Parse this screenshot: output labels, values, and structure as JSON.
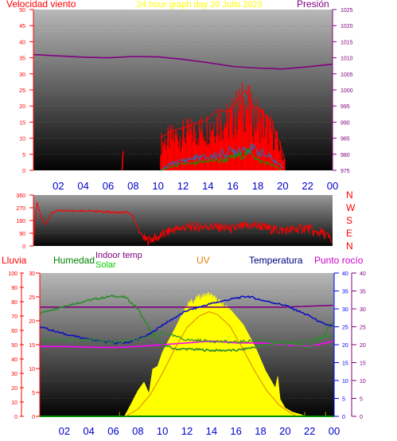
{
  "title": "24 hour graph day   20 Julio 2023",
  "colors": {
    "wind": "#ff0000",
    "gust_avg": "#1f6fbf",
    "gust_green": "#00a000",
    "pressure": "#800080",
    "direction": "#ff0000",
    "humidity": "#2e8b2e",
    "indoor_temp": "#800080",
    "solar": "#ffff00",
    "uv": "#e08000",
    "temperature": "#1010c0",
    "dewpoint": "#ff00ff",
    "rain": "#009000",
    "axis_red": "#ff0000",
    "axis_blue": "#0000ff",
    "axis_purple": "#800080",
    "axis_hours": "#0000cc"
  },
  "hours": [
    "02",
    "04",
    "06",
    "08",
    "10",
    "12",
    "14",
    "16",
    "18",
    "20",
    "22",
    "00"
  ],
  "chart_data": [
    {
      "type": "line",
      "panel": "wind_pressure",
      "left_axis": {
        "label": "Velocidad viento",
        "ticks": [
          "50",
          "45",
          "40",
          "35",
          "30",
          "25",
          "20",
          "15",
          "10",
          "5",
          "0"
        ],
        "ylim": [
          0,
          50
        ]
      },
      "right_axis": {
        "label": "Presión",
        "ticks": [
          "1025",
          "1020",
          "1015",
          "1010",
          "1005",
          "1000",
          "995",
          "990",
          "985",
          "980",
          "975"
        ],
        "ylim": [
          975,
          1025
        ]
      },
      "x_hours_range": [
        0,
        24
      ],
      "series": [
        {
          "key": "pressure",
          "axis": "right",
          "x": [
            0,
            2,
            4,
            6,
            8,
            10,
            12,
            14,
            16,
            18,
            20,
            22,
            24
          ],
          "y": [
            1011,
            1010.6,
            1010.2,
            1010,
            1010.4,
            1010.3,
            1009.5,
            1008.5,
            1007.3,
            1006.8,
            1006.5,
            1007.2,
            1008
          ]
        },
        {
          "key": "wind",
          "axis": "left",
          "x": [
            7.1,
            7.2,
            10.2,
            11,
            11.8,
            12.6,
            13.4,
            14,
            14.8,
            15.6,
            16.4,
            17,
            17.6,
            18.4,
            19.2,
            19.8,
            20.2
          ],
          "y": [
            0,
            6,
            10,
            12,
            13,
            14,
            15,
            16,
            19,
            18,
            22,
            25,
            20,
            18,
            14,
            8,
            3
          ]
        },
        {
          "key": "gust_avg",
          "axis": "left",
          "x": [
            10.2,
            11,
            12,
            13,
            14,
            15,
            16,
            17,
            18,
            19,
            20
          ],
          "y": [
            0,
            2,
            3,
            4,
            4,
            5,
            6,
            7,
            6,
            4,
            1
          ]
        },
        {
          "key": "gust_green",
          "axis": "left",
          "x": [
            10.2,
            11,
            12,
            13,
            14,
            15,
            16,
            17,
            17.5,
            18,
            19,
            20
          ],
          "y": [
            0,
            1,
            2,
            2,
            3,
            3,
            4,
            5,
            6,
            3,
            2,
            0
          ]
        }
      ]
    },
    {
      "type": "line",
      "panel": "wind_direction",
      "left_axis": {
        "ticks": [
          "360",
          "270",
          "180",
          "90",
          "0"
        ],
        "ylim": [
          0,
          360
        ]
      },
      "right_labels": [
        "N",
        "W",
        "S",
        "E",
        "N"
      ],
      "series": [
        {
          "key": "direction",
          "x": [
            0,
            0.3,
            0.6,
            1,
            1.4,
            2,
            4,
            6,
            7,
            7.5,
            8,
            8.5,
            9,
            10,
            11,
            12,
            13,
            14,
            15,
            16,
            17,
            18,
            19,
            20,
            21,
            22,
            22.6,
            23,
            23.6,
            24
          ],
          "y": [
            30,
            310,
            200,
            150,
            230,
            250,
            250,
            240,
            235,
            240,
            210,
            100,
            40,
            60,
            110,
            130,
            135,
            140,
            130,
            120,
            140,
            145,
            120,
            110,
            115,
            130,
            90,
            100,
            70,
            30
          ]
        }
      ]
    },
    {
      "type": "line",
      "panel": "temperature_humidity",
      "header_labels": {
        "rain": "Lluvia",
        "humidity": "Humedad",
        "indoor_temp": "Indoor temp",
        "solar": "Solar",
        "uv": "UV",
        "temperature": "Temperatura",
        "dewpoint": "Punto rocío"
      },
      "axes": {
        "rain_ticks": [
          "100",
          "90",
          "80",
          "70",
          "60",
          "50",
          "40",
          "30",
          "20",
          "10",
          "0"
        ],
        "left_ticks": [
          "30",
          "25",
          "20",
          "15",
          "10",
          "5",
          "0"
        ],
        "right_temp_ticks": [
          "40",
          "35",
          "30",
          "25",
          "20",
          "15",
          "10",
          "5",
          "0"
        ],
        "right_dew_ticks": [
          "40",
          "35",
          "30",
          "25",
          "20",
          "15",
          "10",
          "5",
          "0"
        ],
        "ylim_temp": [
          0,
          40
        ],
        "ylim_solar": [
          0,
          1000
        ],
        "ylim_uv": [
          0,
          10
        ],
        "ylim_humidity": [
          0,
          100
        ]
      },
      "series": [
        {
          "key": "humidity",
          "scale": "humidity",
          "x": [
            0,
            2,
            4,
            6,
            7,
            8,
            9,
            10,
            11,
            12,
            14,
            16,
            18,
            20,
            22,
            23,
            24
          ],
          "y": [
            72,
            77,
            81,
            84,
            83,
            75,
            60,
            50,
            47,
            47,
            46,
            46,
            49,
            52,
            48,
            55,
            67
          ]
        },
        {
          "key": "temperature",
          "scale": "temp",
          "x": [
            0,
            2,
            4,
            6,
            7,
            8,
            9,
            10,
            11,
            12,
            14,
            16,
            17,
            18,
            20,
            22,
            23,
            24
          ],
          "y": [
            25,
            23,
            21.5,
            20.5,
            20.5,
            21.5,
            23,
            25.5,
            27.5,
            29.5,
            31.5,
            33,
            33.5,
            32.5,
            31,
            28,
            26,
            25
          ]
        },
        {
          "key": "indoor_temp",
          "scale": "temp",
          "x": [
            0,
            4,
            8,
            12,
            16,
            20,
            24
          ],
          "y": [
            30.5,
            30.5,
            30.5,
            30.5,
            30.5,
            30.5,
            31
          ]
        },
        {
          "key": "dewpoint",
          "scale": "temp",
          "x": [
            0,
            2,
            4,
            6,
            8,
            10,
            12,
            14,
            16,
            18,
            20,
            22,
            24
          ],
          "y": [
            19.5,
            19.5,
            19.3,
            19.2,
            19.5,
            20,
            20.5,
            21,
            20.5,
            20.5,
            20,
            19.5,
            21
          ]
        },
        {
          "key": "solar",
          "scale": "solar",
          "x": [
            6.9,
            7.4,
            8,
            8.5,
            8.9,
            9.2,
            9.6,
            10,
            11,
            12,
            13,
            13.8,
            14.6,
            15.6,
            16.6,
            17.6,
            18.4,
            19.2,
            19.4,
            19.6,
            20,
            20.6,
            21.4,
            21.6
          ],
          "y": [
            0,
            80,
            180,
            240,
            160,
            330,
            350,
            450,
            610,
            780,
            830,
            850,
            800,
            740,
            640,
            480,
            320,
            200,
            280,
            120,
            60,
            30,
            10,
            0
          ]
        },
        {
          "key": "uv",
          "scale": "uv",
          "x": [
            7,
            8,
            9,
            10,
            11,
            12,
            13,
            13.8,
            14.5,
            15.5,
            16.5,
            17.5,
            18.5,
            19.5,
            20.5,
            21
          ],
          "y": [
            0,
            0.5,
            1.5,
            3,
            4.7,
            6.2,
            7,
            7.3,
            7.1,
            6.3,
            4.8,
            3.2,
            1.8,
            0.8,
            0.2,
            0
          ]
        },
        {
          "key": "rain",
          "scale": "rain",
          "x": [
            0,
            24
          ],
          "y": [
            0,
            0
          ]
        }
      ]
    }
  ]
}
